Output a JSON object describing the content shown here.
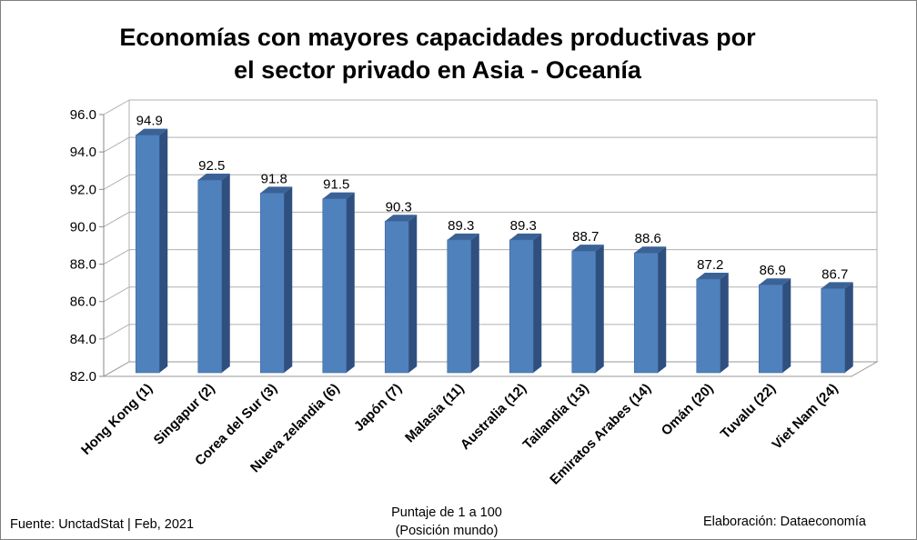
{
  "chart_data": {
    "type": "bar",
    "title_line1": "Economías con mayores capacidades productivas por",
    "title_line2": "el sector privado en Asia - Oceanía",
    "categories": [
      "Hong Kong (1)",
      "Singapur (2)",
      "Corea del Sur (3)",
      "Nueva zelandia (6)",
      "Japón (7)",
      "Malasia (11)",
      "Australia (12)",
      "Tailandia (13)",
      "Emiratos Arabes (14)",
      "Omán (20)",
      "Tuvalu (22)",
      "Viet Nam (24)"
    ],
    "values": [
      94.9,
      92.5,
      91.8,
      91.5,
      90.3,
      89.3,
      89.3,
      88.7,
      88.6,
      87.2,
      86.9,
      86.7
    ],
    "data_labels": [
      "94.9",
      "92.5",
      "91.8",
      "91.5",
      "90.3",
      "89.3",
      "89.3",
      "88.7",
      "88.6",
      "87.2",
      "86.9",
      "86.7"
    ],
    "yticks": [
      "82.0",
      "84.0",
      "86.0",
      "88.0",
      "90.0",
      "92.0",
      "94.0",
      "96.0"
    ],
    "ylim": [
      82,
      96
    ],
    "grid": true,
    "legend": "none",
    "bar_color": "#4f81bd"
  },
  "footer": {
    "source": "Fuente: UnctadStat | Feb, 2021",
    "note_line1": "Puntaje de 1 a 100",
    "note_line2": "(Posición mundo)",
    "credit": "Elaboración: Dataeconomía"
  }
}
